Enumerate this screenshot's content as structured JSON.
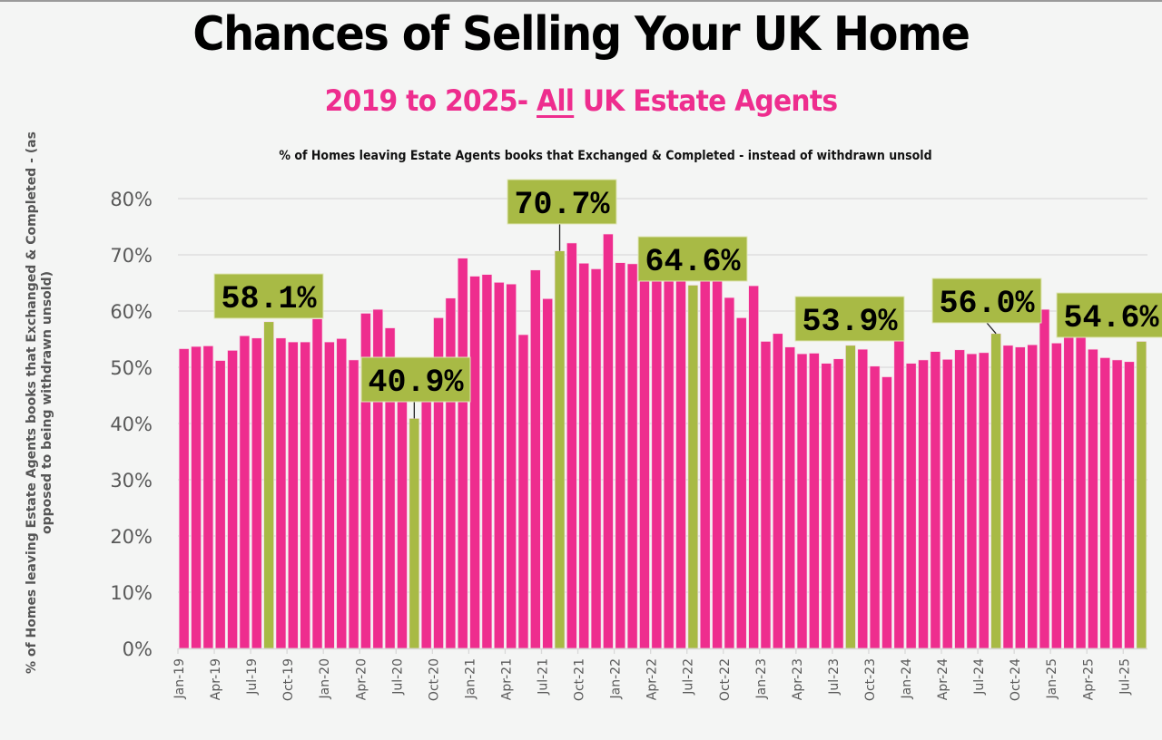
{
  "header": {
    "title": "Chances of Selling Your UK Home",
    "subtitle_pre": "2019 to 2025- ",
    "subtitle_underlined": "All",
    "subtitle_post": " UK Estate Agents"
  },
  "colors": {
    "bar_default": "#ee2d8e",
    "bar_highlight": "#a8ba45",
    "gridline": "#d9d9d9",
    "background": "#f4f5f4"
  },
  "chart_data": {
    "type": "bar",
    "title": "% of Homes leaving Estate Agents books that Exchanged & Completed - instead of withdrawn unsold",
    "xlabel": "",
    "ylabel": "% of Homes leaving Estate Agents books that Exchanged & Completed - (as opposed to being withdrawn unsold)",
    "ylim": [
      0,
      80
    ],
    "yticks": [
      "0%",
      "10%",
      "20%",
      "30%",
      "40%",
      "50%",
      "60%",
      "70%",
      "80%"
    ],
    "grid": true,
    "legend": "none",
    "xtick_labels": [
      "Jan-19",
      "Apr-19",
      "Jul-19",
      "Oct-19",
      "Jan-20",
      "Apr-20",
      "Jul-20",
      "Oct-20",
      "Jan-21",
      "Apr-21",
      "Jul-21",
      "Oct-21",
      "Jan-22",
      "Apr-22",
      "Jul-22",
      "Oct-22",
      "Jan-23",
      "Apr-23",
      "Jul-23",
      "Oct-23",
      "Jan-24",
      "Apr-24",
      "Jul-24",
      "Oct-24",
      "Jan-25",
      "Apr-25",
      "Jul-25"
    ],
    "categories": [
      "Jan-19",
      "Feb-19",
      "Mar-19",
      "Apr-19",
      "May-19",
      "Jun-19",
      "Jul-19",
      "Aug-19",
      "Sep-19",
      "Oct-19",
      "Nov-19",
      "Dec-19",
      "Jan-20",
      "Feb-20",
      "Mar-20",
      "Apr-20",
      "May-20",
      "Jun-20",
      "Jul-20",
      "Aug-20",
      "Sep-20",
      "Oct-20",
      "Nov-20",
      "Dec-20",
      "Jan-21",
      "Feb-21",
      "Mar-21",
      "Apr-21",
      "May-21",
      "Jun-21",
      "Jul-21",
      "Aug-21",
      "Sep-21",
      "Oct-21",
      "Nov-21",
      "Dec-21",
      "Jan-22",
      "Feb-22",
      "Mar-22",
      "Apr-22",
      "May-22",
      "Jun-22",
      "Jul-22",
      "Aug-22",
      "Sep-22",
      "Oct-22",
      "Nov-22",
      "Dec-22",
      "Jan-23",
      "Feb-23",
      "Mar-23",
      "Apr-23",
      "May-23",
      "Jun-23",
      "Jul-23",
      "Aug-23",
      "Sep-23",
      "Oct-23",
      "Nov-23",
      "Dec-23",
      "Jan-24",
      "Feb-24",
      "Mar-24",
      "Apr-24",
      "May-24",
      "Jun-24",
      "Jul-24",
      "Aug-24",
      "Sep-24",
      "Oct-24",
      "Nov-24",
      "Dec-24",
      "Jan-25",
      "Feb-25",
      "Mar-25",
      "Apr-25",
      "May-25",
      "Jun-25",
      "Jul-25",
      "Aug-25"
    ],
    "values": [
      53.3,
      53.7,
      53.8,
      51.2,
      53.0,
      55.6,
      55.2,
      58.1,
      55.2,
      54.5,
      54.5,
      58.6,
      54.5,
      55.1,
      51.3,
      59.6,
      60.3,
      57.0,
      50.0,
      40.9,
      48.0,
      58.8,
      62.3,
      69.4,
      66.2,
      66.5,
      65.1,
      64.8,
      55.8,
      67.3,
      62.2,
      70.7,
      72.1,
      68.5,
      67.5,
      73.7,
      68.6,
      68.4,
      67.0,
      66.0,
      66.5,
      66.0,
      64.6,
      67.0,
      66.5,
      62.4,
      58.8,
      64.5,
      54.6,
      56.0,
      53.6,
      52.4,
      52.5,
      50.7,
      51.5,
      53.9,
      53.2,
      50.2,
      48.3,
      55.0,
      50.7,
      51.3,
      52.8,
      51.4,
      53.1,
      52.4,
      52.6,
      56.0,
      53.9,
      53.6,
      54.0,
      60.3,
      54.3,
      55.5,
      55.5,
      53.2,
      51.7,
      51.3,
      51.0,
      54.6
    ],
    "highlighted": [
      "Aug-19",
      "Aug-20",
      "Aug-21",
      "Jul-22",
      "Aug-23",
      "Aug-24",
      "Aug-25"
    ],
    "annotations": [
      {
        "category": "Aug-19",
        "text": "58.1%",
        "connector": false
      },
      {
        "category": "Aug-20",
        "text": "40.9%",
        "connector": true
      },
      {
        "category": "Aug-21",
        "text": "70.7%",
        "connector": true
      },
      {
        "category": "Jul-22",
        "text": "64.6%",
        "connector": false
      },
      {
        "category": "Aug-23",
        "text": "53.9%",
        "connector": false
      },
      {
        "category": "Aug-24",
        "text": "56.0%",
        "connector": true
      },
      {
        "category": "Aug-25",
        "text": "54.6%",
        "connector": false
      }
    ]
  }
}
